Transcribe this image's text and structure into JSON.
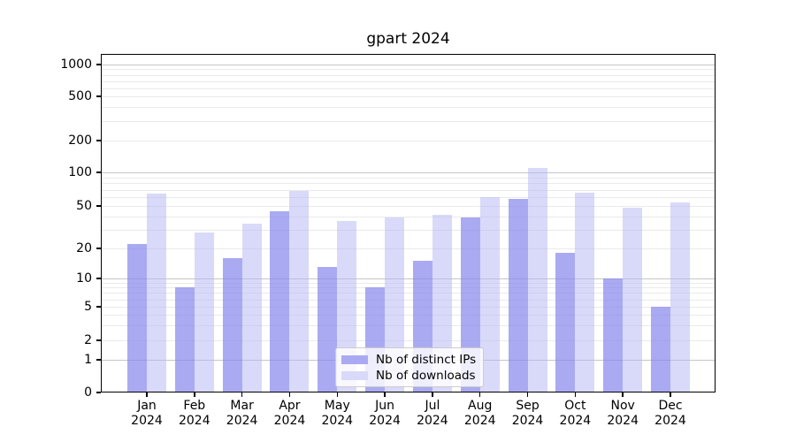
{
  "figure": {
    "background": "#ffffff",
    "frame_color": "#000000"
  },
  "chart_data": {
    "type": "bar",
    "title": "gpart 2024",
    "categories": [
      "Jan",
      "Feb",
      "Mar",
      "Apr",
      "May",
      "Jun",
      "Jul",
      "Aug",
      "Sep",
      "Oct",
      "Nov",
      "Dec"
    ],
    "x_year_label": "2024",
    "series": [
      {
        "name": "Nb of distinct IPs",
        "color": "#aaaaf2",
        "fill": "rgba(134,134,237,0.7)",
        "values": [
          22,
          8,
          16,
          45,
          13,
          8,
          15,
          39,
          58,
          18,
          10,
          5
        ]
      },
      {
        "name": "Nb of downloads",
        "color": "#d9d9f9",
        "fill": "rgba(179,179,243,0.5)",
        "values": [
          65,
          28,
          34,
          68,
          36,
          39,
          41,
          60,
          110,
          66,
          48,
          54
        ]
      }
    ],
    "y_ticks": [
      0,
      1,
      2,
      5,
      10,
      20,
      50,
      100,
      200,
      500,
      1000
    ],
    "y_scale": "symlog",
    "ylim": [
      0,
      1300
    ],
    "grid": {
      "visible": "on",
      "major_color": "#c6c6c6",
      "minor_color": "#eaeaea"
    },
    "legend_position": "lower center"
  }
}
